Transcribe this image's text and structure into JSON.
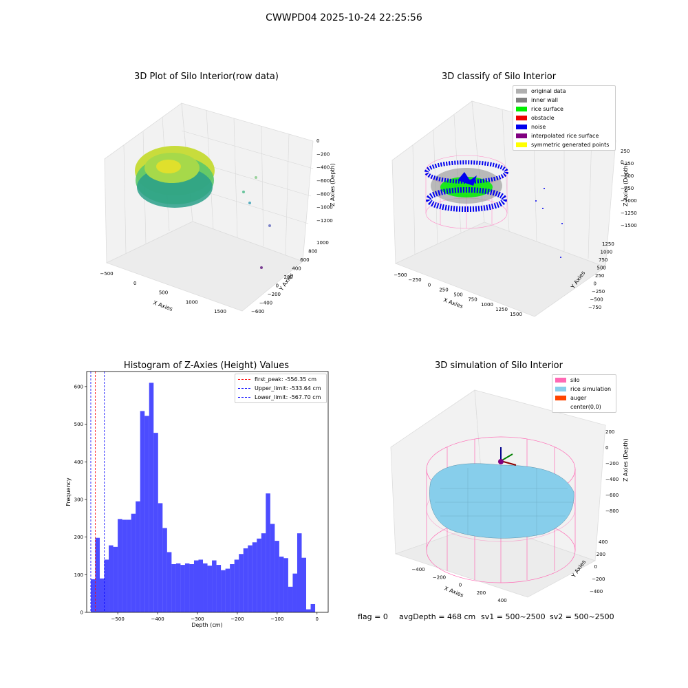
{
  "suptitle": "CWWPD04 2025-10-24 22:25:56",
  "raw3d": {
    "title": "3D Plot of Silo Interior(row data)",
    "xlabel": "X Axies",
    "ylabel": "Y Axies",
    "zlabel": "Z Axies (Depth)",
    "xticks": [
      "−500",
      "0",
      "500",
      "1000",
      "1500"
    ],
    "yticks": [
      "−600",
      "−400",
      "−200",
      "0",
      "200",
      "400",
      "600",
      "800",
      "1000"
    ],
    "zticks": [
      "0",
      "−200",
      "−400",
      "−600",
      "−800",
      "−1000",
      "−1200"
    ]
  },
  "classify3d": {
    "title": "3D classify of Silo Interior",
    "xlabel": "X Axies",
    "ylabel": "Y Axies",
    "zlabel": "Z Axies (Depth)",
    "xticks": [
      "−500",
      "−250",
      "0",
      "250",
      "500",
      "750",
      "1000",
      "1250",
      "1500"
    ],
    "yticks": [
      "−750",
      "−500",
      "−250",
      "0",
      "250",
      "500",
      "750",
      "1000",
      "1250"
    ],
    "zticks": [
      "",
      "−250",
      "−500",
      "−750",
      "−1000",
      "−1250",
      "−1500"
    ],
    "ztick_partial": [
      "250",
      "0"
    ],
    "legend": [
      {
        "label": "original data",
        "color": "#b0b0b0"
      },
      {
        "label": "inner wall",
        "color": "#808080"
      },
      {
        "label": "rice surface",
        "color": "#00ee00"
      },
      {
        "label": "obstacle",
        "color": "#ee0000"
      },
      {
        "label": "noise",
        "color": "#0000ee"
      },
      {
        "label": "interpolated rice surface",
        "color": "#800080"
      },
      {
        "label": "symmetric generated points",
        "color": "#ffff00"
      }
    ]
  },
  "sim3d": {
    "title": "3D simulation of Silo Interior",
    "xlabel": "X Axies",
    "ylabel": "Y Axies",
    "zlabel": "Z Axies (Depth)",
    "xticks": [
      "−400",
      "−200",
      "0",
      "200",
      "400"
    ],
    "yticks": [
      "−400",
      "−200",
      "0",
      "200",
      "400"
    ],
    "zticks": [
      "200",
      "0",
      "−200",
      "−400",
      "−600",
      "−800"
    ],
    "legend": [
      {
        "label": "silo",
        "color": "#ff69b4"
      },
      {
        "label": "rice simulation",
        "color": "#87ceeb"
      },
      {
        "label": "auger",
        "color": "#ff4500"
      },
      {
        "label": "center(0,0)",
        "color": "#ffffff"
      }
    ]
  },
  "footer": {
    "flag": "flag = 0",
    "avg": "avgDepth = 468 cm",
    "sv1": "sv1 = 500~2500",
    "sv2": "sv2 = 500~2500"
  },
  "chart_data": {
    "type": "bar",
    "title": "Histogram of Z-Axies (Height) Values",
    "xlabel": "Depth (cm)",
    "ylabel": "Frequency",
    "xlim": [
      -578,
      28
    ],
    "ylim": [
      0,
      640
    ],
    "xticks": [
      -500,
      -400,
      -300,
      -200,
      -100,
      0
    ],
    "xtick_labels": [
      "−500",
      "−400",
      "−300",
      "−200",
      "−100",
      "0"
    ],
    "yticks": [
      0,
      100,
      200,
      300,
      400,
      500,
      600
    ],
    "bin_start": -567.7,
    "bin_width": 11.26,
    "values": [
      88,
      198,
      90,
      140,
      178,
      174,
      248,
      246,
      246,
      262,
      295,
      535,
      522,
      610,
      477,
      290,
      224,
      160,
      128,
      130,
      126,
      130,
      128,
      138,
      140,
      130,
      124,
      138,
      126,
      112,
      116,
      128,
      140,
      155,
      170,
      178,
      186,
      196,
      210,
      316,
      235,
      190,
      148,
      144,
      68,
      103,
      210,
      145,
      8,
      22
    ],
    "color": "#0000ff",
    "vlines": [
      {
        "label": "first_peak: -556.35 cm",
        "x": -556.35,
        "color": "#ff0000"
      },
      {
        "label": "Upper_limit: -533.64 cm",
        "x": -533.64,
        "color": "#0000ff"
      },
      {
        "label": "Lower_limit: -567.70 cm",
        "x": -567.7,
        "color": "#0000ff"
      }
    ],
    "legend_position": "top-right"
  }
}
